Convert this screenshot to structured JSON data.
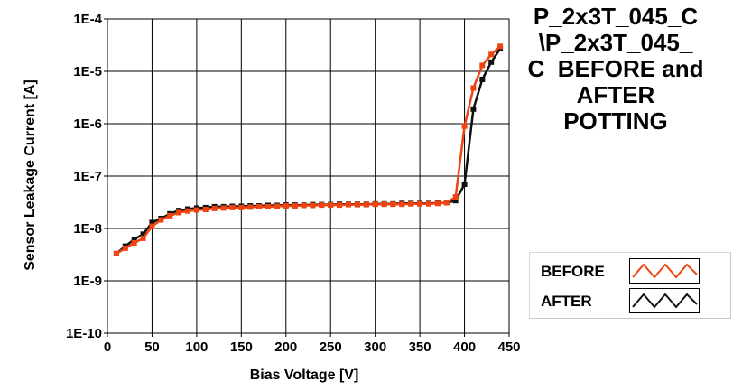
{
  "chart_data": {
    "type": "line",
    "title_lines": [
      "P_2x3T_045_C",
      "\\P_2x3T_045_",
      "C_BEFORE and",
      "AFTER",
      "POTTING"
    ],
    "xlabel": "Bias Voltage [V]",
    "ylabel": "Sensor Leakage Current [A]",
    "xlim": [
      0,
      450
    ],
    "ylim": [
      1e-10,
      0.0001
    ],
    "yscale": "log",
    "x_ticks": [
      0,
      50,
      100,
      150,
      200,
      250,
      300,
      350,
      400,
      450
    ],
    "y_ticks": [
      1e-10,
      1e-09,
      1e-08,
      1e-07,
      1e-06,
      1e-05,
      0.0001
    ],
    "y_tick_labels": [
      "1E-10",
      "1E-9",
      "1E-8",
      "1E-7",
      "1E-6",
      "1E-5",
      "1E-4"
    ],
    "grid": true,
    "legend_position": "bottom-right",
    "series": [
      {
        "name": "BEFORE",
        "color": "#ee4411",
        "x": [
          10,
          20,
          30,
          40,
          50,
          60,
          70,
          80,
          90,
          100,
          110,
          120,
          130,
          140,
          150,
          160,
          170,
          180,
          190,
          200,
          210,
          220,
          230,
          240,
          250,
          260,
          270,
          280,
          290,
          300,
          310,
          320,
          330,
          340,
          350,
          360,
          370,
          380,
          390,
          400,
          410,
          420,
          430,
          440
        ],
        "y": [
          3.3e-09,
          4.2e-09,
          5.3e-09,
          6.5e-09,
          1.1e-08,
          1.45e-08,
          1.75e-08,
          2e-08,
          2.15e-08,
          2.25e-08,
          2.3e-08,
          2.4e-08,
          2.45e-08,
          2.5e-08,
          2.5e-08,
          2.55e-08,
          2.6e-08,
          2.6e-08,
          2.65e-08,
          2.7e-08,
          2.7e-08,
          2.75e-08,
          2.75e-08,
          2.8e-08,
          2.8e-08,
          2.8e-08,
          2.85e-08,
          2.85e-08,
          2.85e-08,
          2.9e-08,
          2.9e-08,
          2.9e-08,
          2.9e-08,
          2.95e-08,
          2.95e-08,
          2.95e-08,
          3e-08,
          3.1e-08,
          4e-08,
          9e-07,
          4.8e-06,
          1.3e-05,
          2.1e-05,
          3e-05
        ]
      },
      {
        "name": "AFTER",
        "color": "#111111",
        "x": [
          10,
          20,
          30,
          40,
          50,
          60,
          70,
          80,
          90,
          100,
          110,
          120,
          130,
          140,
          150,
          160,
          170,
          180,
          190,
          200,
          210,
          220,
          230,
          240,
          250,
          260,
          270,
          280,
          290,
          300,
          310,
          320,
          330,
          340,
          350,
          360,
          370,
          380,
          390,
          400,
          410,
          420,
          430,
          440
        ],
        "y": [
          3.3e-09,
          4.6e-09,
          6.2e-09,
          7.8e-09,
          1.3e-08,
          1.55e-08,
          1.9e-08,
          2.2e-08,
          2.35e-08,
          2.45e-08,
          2.5e-08,
          2.6e-08,
          2.6e-08,
          2.65e-08,
          2.65e-08,
          2.7e-08,
          2.7e-08,
          2.75e-08,
          2.75e-08,
          2.8e-08,
          2.8e-08,
          2.8e-08,
          2.85e-08,
          2.85e-08,
          2.85e-08,
          2.9e-08,
          2.9e-08,
          2.9e-08,
          2.9e-08,
          2.95e-08,
          2.95e-08,
          2.95e-08,
          3e-08,
          3e-08,
          3e-08,
          3e-08,
          3.05e-08,
          3.1e-08,
          3.4e-08,
          7e-08,
          1.9e-06,
          7e-06,
          1.5e-05,
          2.7e-05
        ]
      }
    ]
  }
}
